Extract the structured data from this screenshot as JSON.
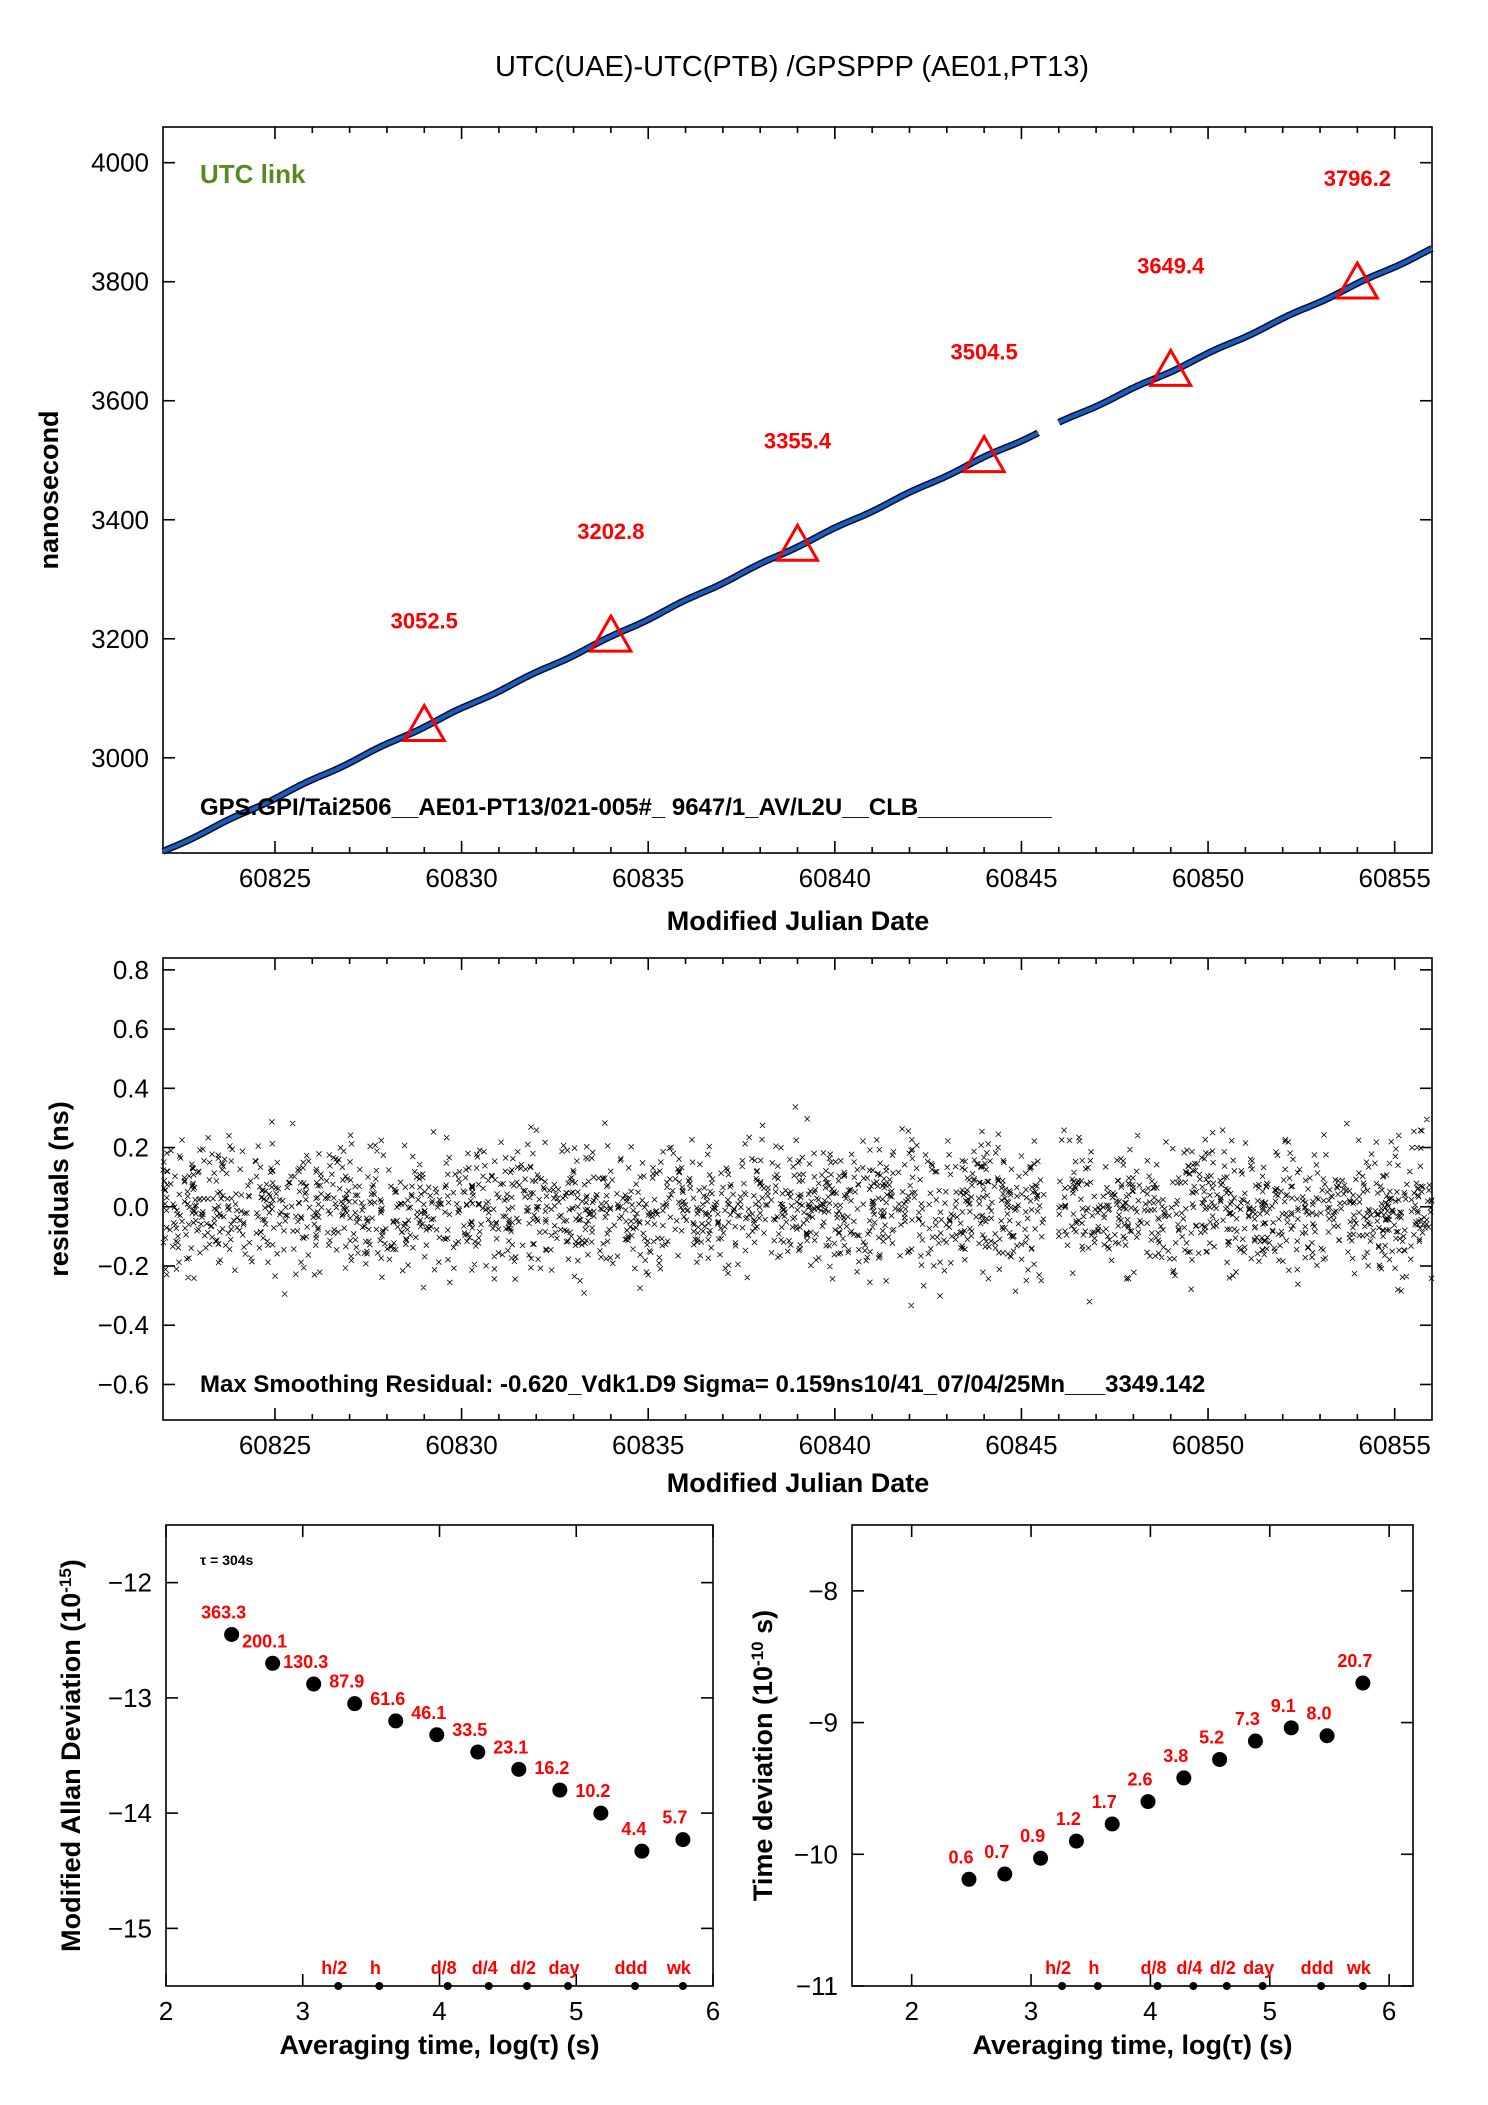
{
  "title": "UTC(UAE)-UTC(PTB)  /GPSPPP  (AE01,PT13)",
  "colors": {
    "line": "#1a5fb4",
    "line_dark": "#0a0a3a",
    "triangle": "#ff0000",
    "label_red": "#ff0000",
    "link_green": "#5a8a1e"
  },
  "chart_data": [
    {
      "id": "link",
      "type": "line",
      "xlabel": "Modified Julian Date",
      "ylabel": "nanosecond",
      "xlim": [
        60822,
        60856
      ],
      "ylim": [
        2840,
        4060
      ],
      "xticks": [
        60825,
        60830,
        60835,
        60840,
        60845,
        60850,
        60855
      ],
      "yticks": [
        3000,
        3200,
        3400,
        3600,
        3800,
        4000
      ],
      "legend_text": "UTC link",
      "footer_text": "GPS.GPI/Tai2506__AE01-PT13/021-005#_  9647/1_AV/L2U__CLB__________",
      "line_points": [
        [
          60822,
          2842
        ],
        [
          60829,
          3052.5
        ],
        [
          60834,
          3202.8
        ],
        [
          60839,
          3355.4
        ],
        [
          60844,
          3504.5
        ],
        [
          60849,
          3649.4
        ],
        [
          60854,
          3796.2
        ],
        [
          60856,
          3855
        ]
      ],
      "gap": [
        60845.5,
        60846.0
      ],
      "markers": [
        {
          "x": 60829,
          "y": 3052.5,
          "label": "3052.5"
        },
        {
          "x": 60834,
          "y": 3202.8,
          "label": "3202.8"
        },
        {
          "x": 60839,
          "y": 3355.4,
          "label": "3355.4"
        },
        {
          "x": 60844,
          "y": 3504.5,
          "label": "3504.5"
        },
        {
          "x": 60849,
          "y": 3649.4,
          "label": "3649.4"
        },
        {
          "x": 60854,
          "y": 3796.2,
          "label": "3796.2"
        }
      ]
    },
    {
      "id": "residuals",
      "type": "scatter",
      "xlabel": "Modified Julian Date",
      "ylabel": "residuals (ns)",
      "xlim": [
        60822,
        60856
      ],
      "ylim": [
        -0.72,
        0.84
      ],
      "xticks": [
        60825,
        60830,
        60835,
        60840,
        60845,
        60850,
        60855
      ],
      "yticks": [
        -0.6,
        -0.4,
        -0.2,
        0.0,
        0.2,
        0.4,
        0.6,
        0.8
      ],
      "ytick_labels": [
        "−0.6",
        "−0.4",
        "−0.2",
        "0.0",
        "0.2",
        "0.4",
        "0.6",
        "0.8"
      ],
      "footer_text": "Max Smoothing Residual: -0.620_Vdk1.D9  Sigma= 0.159ns10/41_07/04/25Mn___3349.142",
      "sigma_ns": 0.159,
      "gap": [
        60845.6,
        60846.0
      ],
      "n_points": 9600
    },
    {
      "id": "mdev",
      "type": "scatter",
      "xlabel": "Averaging time, log(τ) (s)",
      "ylabel": "Modified Allan Deviation (10",
      "ylabel_sup": "-15",
      "ylabel_end": ")",
      "xlim": [
        2,
        6
      ],
      "ylim": [
        -15.5,
        -11.5
      ],
      "xticks": [
        2,
        3,
        4,
        5,
        6
      ],
      "yticks": [
        -15,
        -14,
        -13,
        -12
      ],
      "ytick_labels": [
        "−15",
        "−14",
        "−13",
        "−12"
      ],
      "tau_note": "τ = 304s",
      "points": [
        {
          "x": 2.48,
          "y": -12.45,
          "label": "363.3"
        },
        {
          "x": 2.78,
          "y": -12.7,
          "label": "200.1"
        },
        {
          "x": 3.08,
          "y": -12.88,
          "label": "130.3"
        },
        {
          "x": 3.38,
          "y": -13.05,
          "label": "87.9"
        },
        {
          "x": 3.68,
          "y": -13.2,
          "label": "61.6"
        },
        {
          "x": 3.98,
          "y": -13.32,
          "label": "46.1"
        },
        {
          "x": 4.28,
          "y": -13.47,
          "label": "33.5"
        },
        {
          "x": 4.58,
          "y": -13.62,
          "label": "23.1"
        },
        {
          "x": 4.88,
          "y": -13.8,
          "label": "16.2"
        },
        {
          "x": 5.18,
          "y": -14.0,
          "label": "10.2"
        },
        {
          "x": 5.48,
          "y": -14.33,
          "label": "4.4"
        },
        {
          "x": 5.78,
          "y": -14.23,
          "label": "5.7"
        }
      ],
      "period_marks": [
        {
          "x": 3.26,
          "label": "h/2"
        },
        {
          "x": 3.56,
          "label": "h"
        },
        {
          "x": 4.06,
          "label": "d/8"
        },
        {
          "x": 4.36,
          "label": "d/4"
        },
        {
          "x": 4.64,
          "label": "d/2"
        },
        {
          "x": 4.94,
          "label": "day"
        },
        {
          "x": 5.43,
          "label": "ddd"
        },
        {
          "x": 5.78,
          "label": "wk"
        }
      ]
    },
    {
      "id": "tdev",
      "type": "scatter",
      "xlabel": "Averaging time, log(τ) (s)",
      "ylabel": "Time deviation (10",
      "ylabel_sup": "-10",
      "ylabel_end": " s)",
      "xlim": [
        1.5,
        6.2
      ],
      "ylim": [
        -11,
        -7.5
      ],
      "xticks": [
        2,
        3,
        4,
        5,
        6
      ],
      "yticks": [
        -11,
        -10,
        -9,
        -8
      ],
      "ytick_labels": [
        "−11",
        "−10",
        "−9",
        "−8"
      ],
      "points": [
        {
          "x": 2.48,
          "y": -10.19,
          "label": "0.6"
        },
        {
          "x": 2.78,
          "y": -10.15,
          "label": "0.7"
        },
        {
          "x": 3.08,
          "y": -10.03,
          "label": "0.9"
        },
        {
          "x": 3.38,
          "y": -9.9,
          "label": "1.2"
        },
        {
          "x": 3.68,
          "y": -9.77,
          "label": "1.7"
        },
        {
          "x": 3.98,
          "y": -9.6,
          "label": "2.6"
        },
        {
          "x": 4.28,
          "y": -9.42,
          "label": "3.8"
        },
        {
          "x": 4.58,
          "y": -9.28,
          "label": "5.2"
        },
        {
          "x": 4.88,
          "y": -9.14,
          "label": "7.3"
        },
        {
          "x": 5.18,
          "y": -9.04,
          "label": "9.1"
        },
        {
          "x": 5.48,
          "y": -9.1,
          "label": "8.0"
        },
        {
          "x": 5.78,
          "y": -8.7,
          "label": "20.7"
        }
      ],
      "period_marks": [
        {
          "x": 3.26,
          "label": "h/2"
        },
        {
          "x": 3.56,
          "label": "h"
        },
        {
          "x": 4.06,
          "label": "d/8"
        },
        {
          "x": 4.36,
          "label": "d/4"
        },
        {
          "x": 4.64,
          "label": "d/2"
        },
        {
          "x": 4.94,
          "label": "day"
        },
        {
          "x": 5.43,
          "label": "ddd"
        },
        {
          "x": 5.78,
          "label": "wk"
        }
      ]
    }
  ]
}
